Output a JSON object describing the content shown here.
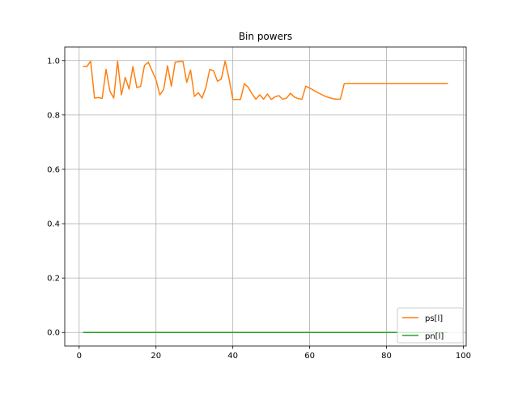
{
  "chart_data": {
    "type": "line",
    "title": "Bin powers",
    "xlabel": "",
    "ylabel": "",
    "xlim": [
      -3.75,
      100.75
    ],
    "ylim": [
      -0.05,
      1.05
    ],
    "xticks": [
      0,
      20,
      40,
      60,
      80,
      100
    ],
    "yticks": [
      0.0,
      0.2,
      0.4,
      0.6,
      0.8,
      1.0
    ],
    "xtick_labels": [
      "0",
      "20",
      "40",
      "60",
      "80",
      "100"
    ],
    "ytick_labels": [
      "0.0",
      "0.2",
      "0.4",
      "0.6",
      "0.8",
      "1.0"
    ],
    "grid": true,
    "legend_position": "lower-right",
    "series": [
      {
        "name": "ps[l]",
        "color": "#ff7f0e",
        "x": [
          1,
          2,
          3,
          4,
          5,
          6,
          7,
          8,
          9,
          10,
          11,
          12,
          13,
          14,
          15,
          16,
          17,
          18,
          19,
          20,
          21,
          22,
          23,
          24,
          25,
          26,
          27,
          28,
          29,
          30,
          31,
          32,
          33,
          34,
          35,
          36,
          37,
          38,
          39,
          40,
          41,
          42,
          43,
          44,
          45,
          46,
          47,
          48,
          49,
          50,
          51,
          52,
          53,
          54,
          55,
          56,
          57,
          58,
          59,
          60,
          61,
          62,
          63,
          64,
          65,
          66,
          67,
          68,
          69,
          70,
          71,
          72,
          73,
          74,
          75,
          76,
          77,
          78,
          79,
          80,
          81,
          82,
          83,
          84,
          85,
          86,
          87,
          88,
          89,
          90,
          91,
          92,
          93,
          94,
          95,
          96
        ],
        "y": [
          0.978,
          0.978,
          0.998,
          0.862,
          0.864,
          0.861,
          0.968,
          0.888,
          0.862,
          0.998,
          0.874,
          0.938,
          0.895,
          0.978,
          0.901,
          0.905,
          0.982,
          0.994,
          0.962,
          0.93,
          0.874,
          0.894,
          0.981,
          0.906,
          0.994,
          0.996,
          0.998,
          0.92,
          0.965,
          0.868,
          0.882,
          0.862,
          0.902,
          0.968,
          0.962,
          0.924,
          0.932,
          0.998,
          0.935,
          0.857,
          0.857,
          0.857,
          0.915,
          0.902,
          0.878,
          0.858,
          0.874,
          0.858,
          0.877,
          0.857,
          0.867,
          0.871,
          0.858,
          0.862,
          0.88,
          0.866,
          0.86,
          0.858,
          0.906,
          0.899,
          0.891,
          0.883,
          0.876,
          0.869,
          0.864,
          0.86,
          0.858,
          0.858,
          0.915,
          0.915,
          0.915,
          0.915,
          0.915,
          0.915,
          0.915,
          0.915,
          0.915,
          0.915,
          0.915,
          0.915,
          0.915,
          0.915,
          0.915,
          0.915,
          0.915,
          0.915,
          0.915,
          0.915,
          0.915,
          0.915,
          0.915,
          0.915,
          0.915,
          0.915,
          0.915,
          0.915
        ]
      },
      {
        "name": "pn[l]",
        "color": "#2ca02c",
        "x": [
          1,
          96
        ],
        "y": [
          0.0,
          0.0
        ]
      }
    ]
  }
}
